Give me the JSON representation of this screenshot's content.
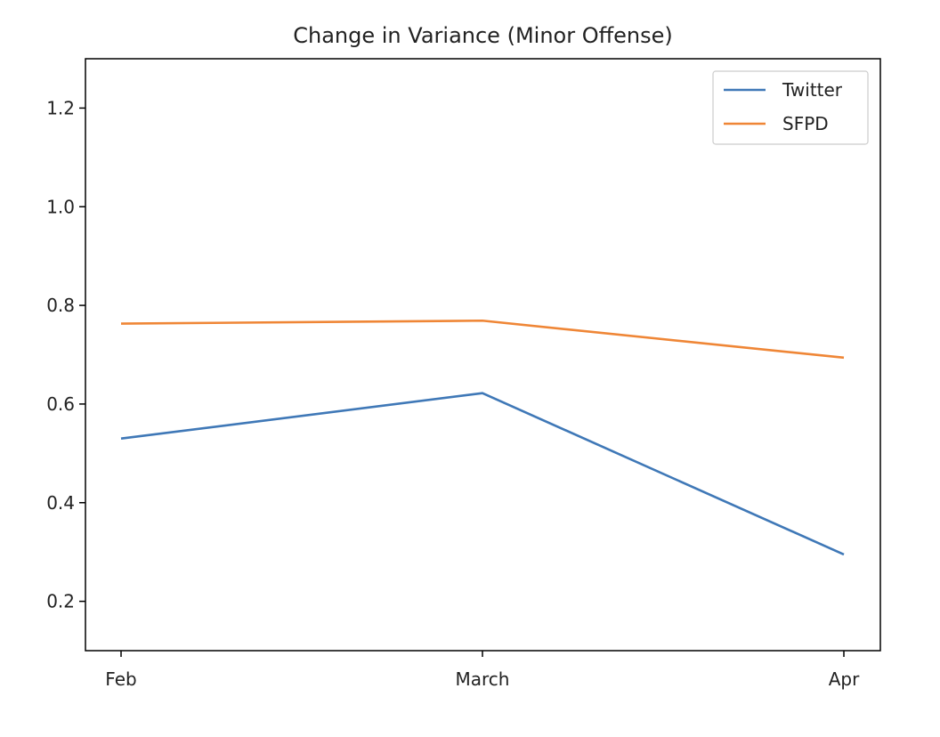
{
  "chart_data": {
    "type": "line",
    "title": "Change in Variance (Minor Offense)",
    "xlabel": "",
    "ylabel": "",
    "categories": [
      "Feb",
      "March",
      "Apr"
    ],
    "series": [
      {
        "name": "Twitter",
        "color": "#3f78b7",
        "values": [
          0.53,
          0.622,
          0.295
        ]
      },
      {
        "name": "SFPD",
        "color": "#ef8636",
        "values": [
          0.763,
          0.769,
          0.694
        ]
      }
    ],
    "ylim": [
      0.1,
      1.3
    ],
    "yticks": [
      "0.2",
      "0.4",
      "0.6",
      "0.8",
      "1.0",
      "1.2"
    ],
    "grid": false,
    "legend_position": "top-right"
  }
}
